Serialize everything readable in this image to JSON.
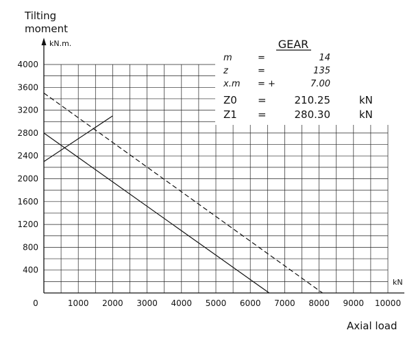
{
  "chart_data": {
    "type": "line",
    "ylabel": [
      "Tilting",
      "moment"
    ],
    "yunit": "kN.m.",
    "xlabel": "Axial load",
    "xunit": "kN",
    "x_ticks": [
      "0",
      "1000",
      "2000",
      "3000",
      "4000",
      "5000",
      "6000",
      "7000",
      "8000",
      "9000",
      "10000"
    ],
    "y_ticks": [
      "400",
      "800",
      "1200",
      "1600",
      "2000",
      "2400",
      "2800",
      "3200",
      "3600",
      "4000"
    ],
    "xlim": [
      0,
      10000
    ],
    "ylim": [
      0,
      4000
    ],
    "grid": true,
    "series": [
      {
        "style": "solid",
        "x": [
          0,
          6550
        ],
        "y": [
          2800,
          0
        ]
      },
      {
        "style": "dashed",
        "x": [
          0,
          8100
        ],
        "y": [
          3500,
          0
        ]
      },
      {
        "style": "solid",
        "x": [
          0,
          2000
        ],
        "y": [
          2300,
          3100
        ]
      }
    ],
    "info_table": {
      "title": "GEAR",
      "rows": [
        {
          "label": "m",
          "sign": "=",
          "value": "14",
          "unit": ""
        },
        {
          "label": "z",
          "sign": "=",
          "value": "135",
          "unit": ""
        },
        {
          "label": "x.m",
          "sign": "= +",
          "value": "7.00",
          "unit": ""
        },
        {
          "label": "Z0",
          "sign": "=",
          "value": "210.25",
          "unit": "kN"
        },
        {
          "label": "Z1",
          "sign": "=",
          "value": "280.30",
          "unit": "kN"
        }
      ]
    }
  }
}
